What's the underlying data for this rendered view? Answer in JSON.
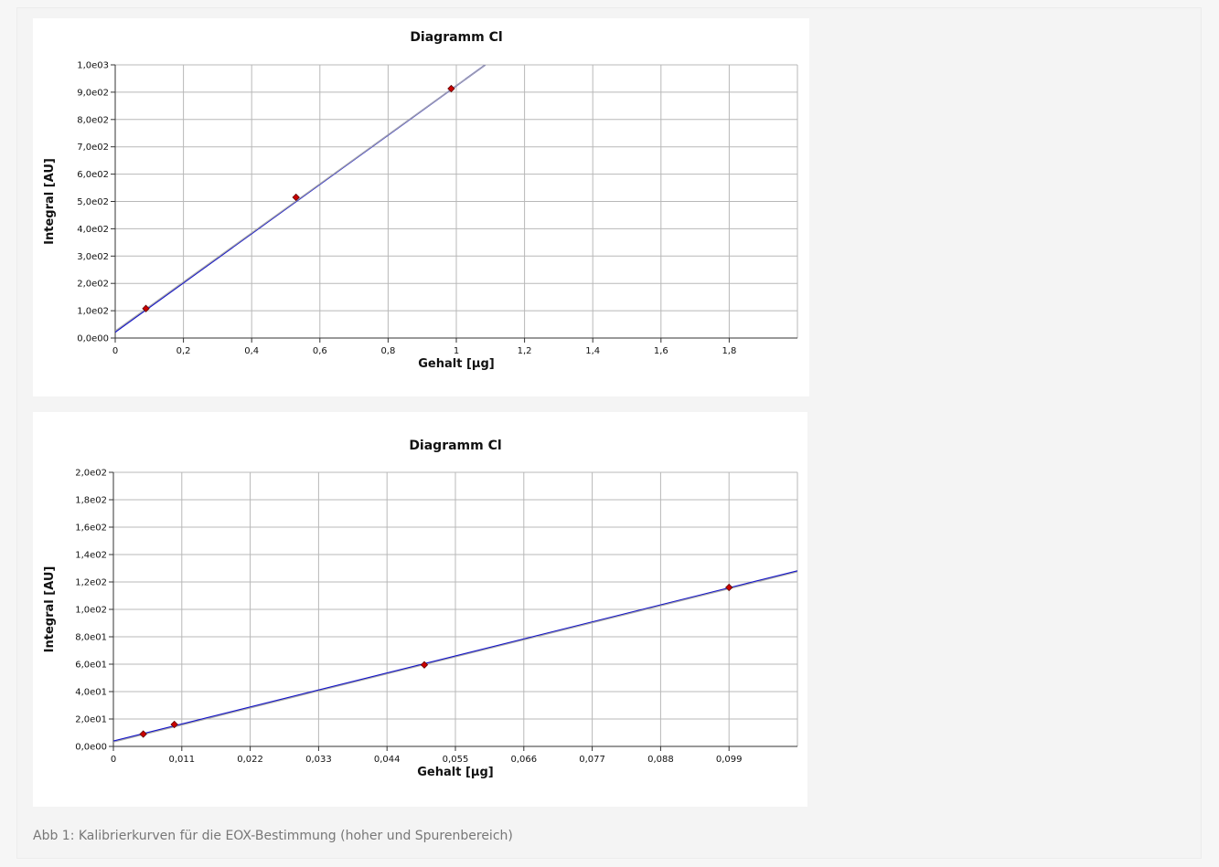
{
  "caption": "Abb 1: Kalibrierkurven für die EOX-Bestimmung (hoher und Spurenbereich)",
  "chart_data": [
    {
      "type": "scatter",
      "title": "Diagramm Cl",
      "xlabel": "Gehalt [µg]",
      "ylabel": "Integral [AU]",
      "xlim": [
        0,
        2.0
      ],
      "ylim": [
        0,
        1000
      ],
      "x_ticks": [
        "0",
        "0,2",
        "0,4",
        "0,6",
        "0,8",
        "1",
        "1,2",
        "1,4",
        "1,6",
        "1,8"
      ],
      "x_tick_values": [
        0,
        0.2,
        0.4,
        0.6,
        0.8,
        1.0,
        1.2,
        1.4,
        1.6,
        1.8
      ],
      "y_ticks": [
        "0,0e00",
        "1,0e02",
        "2,0e02",
        "3,0e02",
        "4,0e02",
        "5,0e02",
        "6,0e02",
        "7,0e02",
        "8,0e02",
        "9,0e02",
        "1,0e03"
      ],
      "y_tick_values": [
        0,
        100,
        200,
        300,
        400,
        500,
        600,
        700,
        800,
        900,
        1000
      ],
      "grid": true,
      "legend": "none",
      "series": [
        {
          "x": [
            0.09,
            0.53,
            0.985
          ],
          "y": [
            108,
            515,
            913
          ],
          "color": "#cc0000",
          "marker": "diamond"
        }
      ],
      "fit_lines": [
        {
          "x": [
            0,
            1.085
          ],
          "y": [
            22,
            1000
          ],
          "color": "#1010c8"
        },
        {
          "x": [
            0,
            1.085
          ],
          "y": [
            26,
            1000
          ],
          "color": "#aaaaaa"
        }
      ]
    },
    {
      "type": "scatter",
      "title": "Diagramm Cl",
      "xlabel": "Gehalt [µg]",
      "ylabel": "Integral [AU]",
      "xlim": [
        0,
        0.11
      ],
      "ylim": [
        0,
        200
      ],
      "x_ticks": [
        "0",
        "0,011",
        "0,022",
        "0,033",
        "0,044",
        "0,055",
        "0,066",
        "0,077",
        "0,088",
        "0,099"
      ],
      "x_tick_values": [
        0,
        0.011,
        0.022,
        0.033,
        0.044,
        0.055,
        0.066,
        0.077,
        0.088,
        0.099
      ],
      "y_ticks": [
        "0,0e00",
        "2,0e01",
        "4,0e01",
        "6,0e01",
        "8,0e01",
        "1,0e02",
        "1,2e02",
        "1,4e02",
        "1,6e02",
        "1,8e02",
        "2,0e02"
      ],
      "y_tick_values": [
        0,
        20,
        40,
        60,
        80,
        100,
        120,
        140,
        160,
        180,
        200
      ],
      "grid": true,
      "legend": "none",
      "series": [
        {
          "x": [
            0.0048,
            0.0098,
            0.05,
            0.099
          ],
          "y": [
            9,
            16,
            59.5,
            116
          ],
          "color": "#cc0000",
          "marker": "diamond"
        }
      ],
      "fit_lines": [
        {
          "x": [
            0,
            0.11
          ],
          "y": [
            3.8,
            128
          ],
          "color": "#1010c8"
        },
        {
          "x": [
            0,
            0.11
          ],
          "y": [
            3.2,
            127.4
          ],
          "color": "#aaaaaa"
        }
      ]
    }
  ]
}
